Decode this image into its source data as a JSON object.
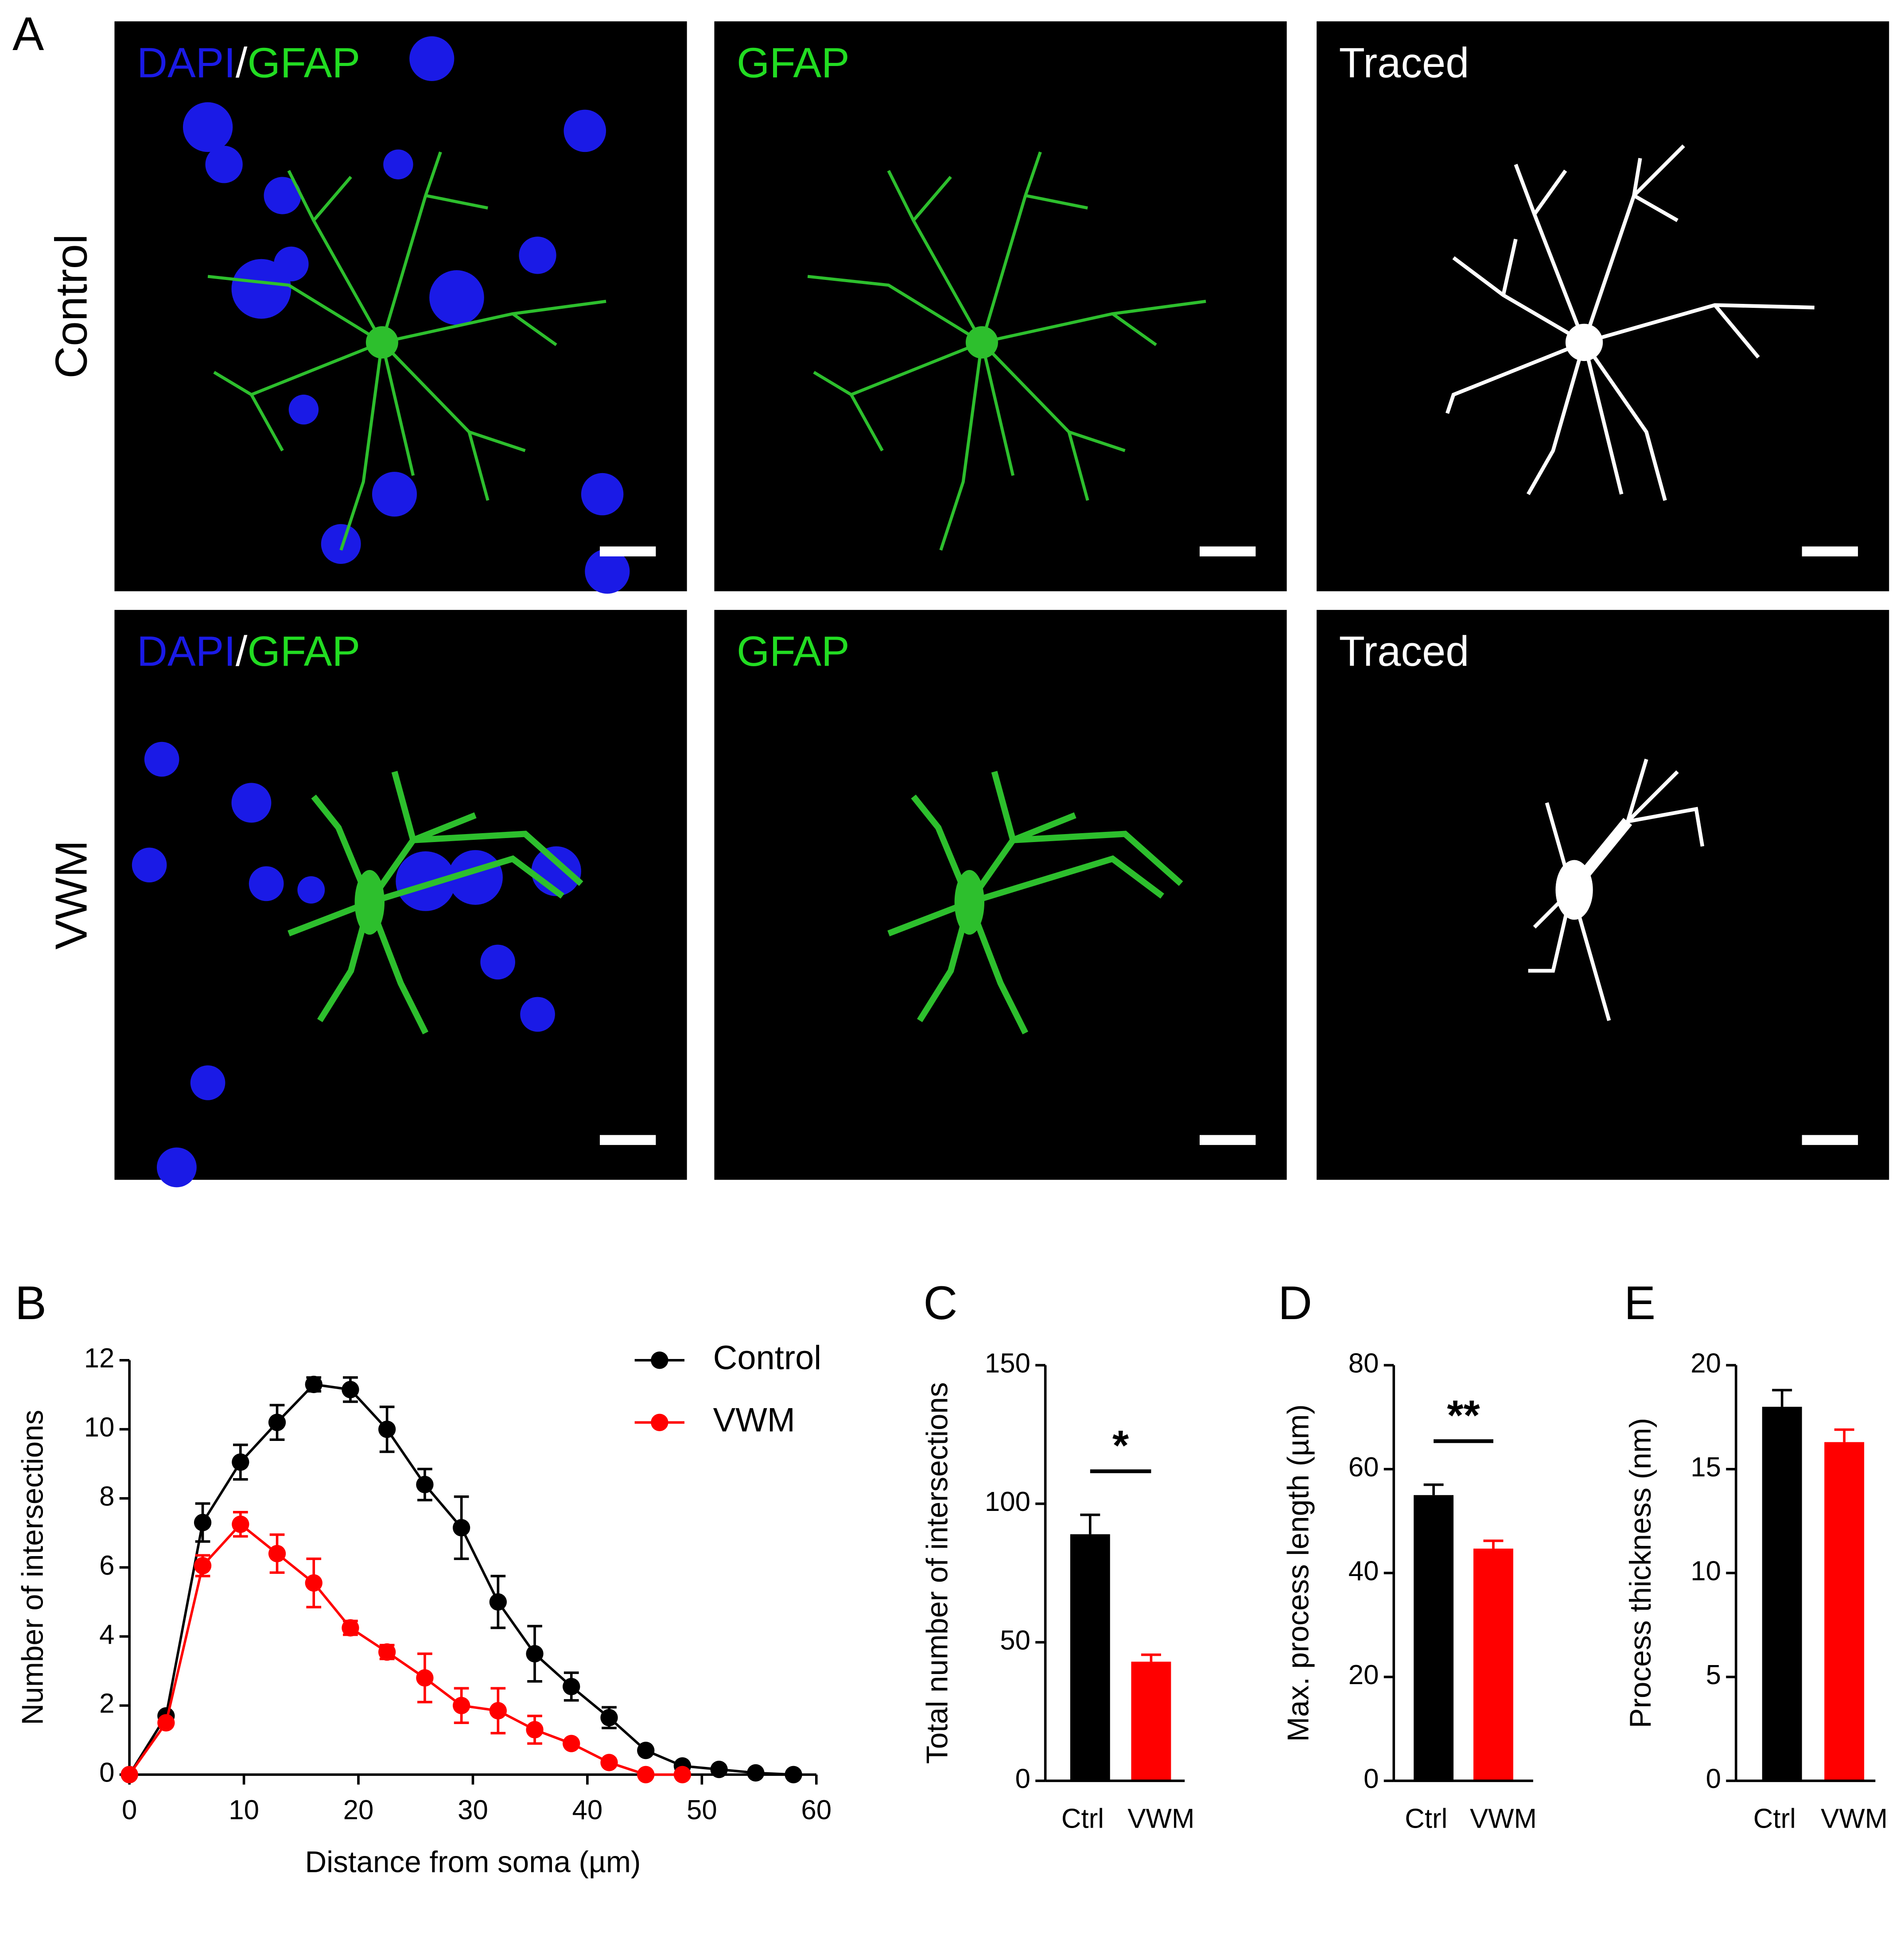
{
  "panel_a": {
    "label": "A",
    "rows": [
      {
        "label": "Control",
        "images": [
          [
            "DAPI",
            "/",
            "GFAP"
          ],
          [
            "GFAP"
          ],
          [
            "Traced"
          ]
        ]
      },
      {
        "label": "VWM",
        "images": [
          [
            "DAPI",
            "/",
            "GFAP"
          ],
          [
            "GFAP"
          ],
          [
            "Traced"
          ]
        ]
      }
    ]
  },
  "chart_data": [
    {
      "type": "line",
      "panel": "B",
      "xlabel": "Distance from soma (µm)",
      "ylabel": "Number of intersections",
      "x": [
        0,
        3.2,
        6.4,
        9.7,
        12.9,
        16.1,
        19.3,
        22.5,
        25.8,
        29.0,
        32.2,
        35.4,
        38.6,
        41.9,
        45.1,
        48.3,
        51.5,
        54.7,
        58.0
      ],
      "series": [
        {
          "name": "Control",
          "color": "#000000",
          "values": [
            0,
            1.7,
            7.3,
            9.05,
            10.2,
            11.3,
            11.15,
            10.0,
            8.4,
            7.15,
            5.0,
            3.5,
            2.55,
            1.65,
            0.7,
            0.25,
            0.15,
            0.05,
            0.0
          ],
          "errors": [
            0,
            0.1,
            0.55,
            0.5,
            0.5,
            0.2,
            0.35,
            0.65,
            0.45,
            0.9,
            0.75,
            0.8,
            0.4,
            0.3,
            0.05,
            0.05,
            0.05,
            0.05,
            0
          ]
        },
        {
          "name": "VWM",
          "color": "#ff0000",
          "values": [
            0,
            1.5,
            6.05,
            7.25,
            6.4,
            5.55,
            4.25,
            3.55,
            2.8,
            2.0,
            1.85,
            1.3,
            0.9,
            0.35,
            0.0,
            0.0,
            null,
            null,
            null
          ],
          "errors": [
            0,
            0.05,
            0.3,
            0.35,
            0.55,
            0.7,
            0.2,
            0.2,
            0.7,
            0.5,
            0.65,
            0.4,
            0.1,
            0.1,
            0,
            0,
            null,
            null,
            null
          ]
        }
      ],
      "xlim": [
        0,
        60
      ],
      "xticks": [
        0,
        10,
        20,
        30,
        40,
        50,
        60
      ],
      "ylim": [
        0,
        12
      ],
      "yticks": [
        0,
        2,
        4,
        6,
        8,
        10,
        12
      ],
      "legend": "top-right"
    },
    {
      "type": "bar",
      "panel": "C",
      "ylabel": "Total number of intersections",
      "categories": [
        "Ctrl",
        "VWM"
      ],
      "values": [
        89,
        43
      ],
      "errors": [
        7,
        2.5
      ],
      "colors": [
        "#000000",
        "#ff0000"
      ],
      "ylim": [
        0,
        150
      ],
      "yticks": [
        0,
        50,
        100,
        150
      ],
      "annotation": "*"
    },
    {
      "type": "bar",
      "panel": "D",
      "ylabel": "Max. process length (µm)",
      "categories": [
        "Ctrl",
        "VWM"
      ],
      "values": [
        55,
        44.7
      ],
      "errors": [
        2,
        1.5
      ],
      "colors": [
        "#000000",
        "#ff0000"
      ],
      "ylim": [
        0,
        80
      ],
      "yticks": [
        0,
        20,
        40,
        60,
        80
      ],
      "annotation": "**"
    },
    {
      "type": "bar",
      "panel": "E",
      "ylabel": "Process thickness (nm)",
      "categories": [
        "Ctrl",
        "VWM"
      ],
      "values": [
        18.0,
        16.3
      ],
      "errors": [
        0.8,
        0.6
      ],
      "colors": [
        "#000000",
        "#ff0000"
      ],
      "ylim": [
        0,
        20
      ],
      "yticks": [
        0,
        5,
        10,
        15,
        20
      ]
    }
  ]
}
